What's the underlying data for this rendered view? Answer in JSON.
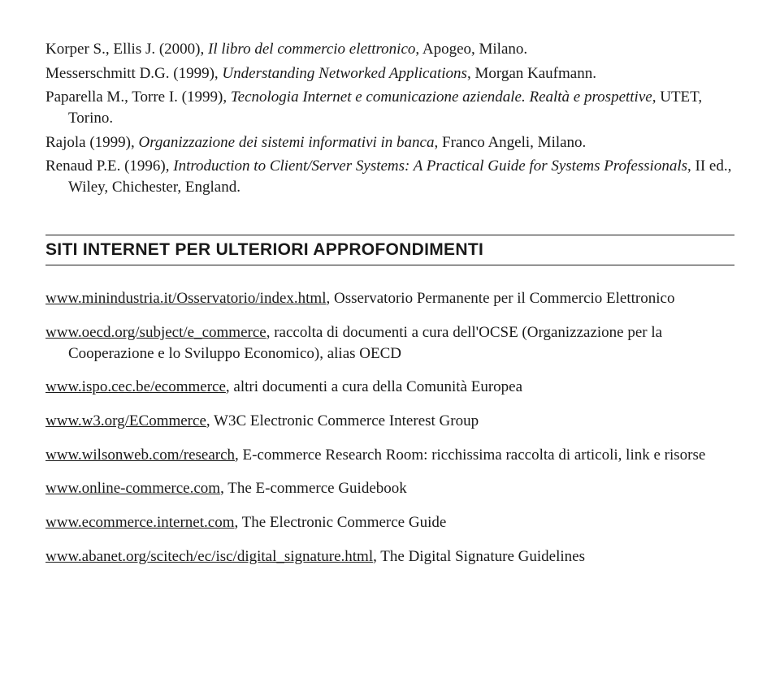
{
  "references": [
    {
      "prefix": "Korper S., Ellis J. (2000), ",
      "title": "Il libro del commercio elettronico",
      "suffix": ", Apogeo, Milano."
    },
    {
      "prefix": "Messerschmitt D.G. (1999), ",
      "title": "Understanding Networked Applications",
      "suffix": ", Morgan Kaufmann."
    },
    {
      "prefix": "Paparella M., Torre I. (1999), ",
      "title": "Tecnologia Internet e comunicazione aziendale. Realtà e prospettive",
      "suffix": ", UTET, Torino."
    },
    {
      "prefix": "Rajola (1999), ",
      "title": "Organizzazione dei sistemi informativi in banca",
      "suffix": ", Franco Angeli, Milano."
    },
    {
      "prefix": "Renaud P.E. (1996), ",
      "title": "Introduction to Client/Server Systems: A Practical Guide for Systems Professionals",
      "suffix": ", II ed., Wiley, Chichester, England."
    }
  ],
  "section_heading": "SITI INTERNET PER ULTERIORI APPROFONDIMENTI",
  "links": [
    {
      "url": "www.minindustria.it/Osservatorio/index.html",
      "desc": ", Osservatorio Permanente per il Commercio Elettronico"
    },
    {
      "url": "www.oecd.org/subject/e_commerce",
      "desc": ", raccolta di documenti a cura dell'OCSE (Organizzazione per la Cooperazione e lo Sviluppo Economico), alias OECD"
    },
    {
      "url": "www.ispo.cec.be/ecommerce",
      "desc": ", altri documenti a cura della Comunità Europea"
    },
    {
      "url": "www.w3.org/ECommerce",
      "desc": ", W3C Electronic Commerce Interest Group"
    },
    {
      "url": "www.wilsonweb.com/research",
      "desc": ", E-commerce Research Room: ricchissima raccolta di articoli, link e risorse"
    },
    {
      "url": "www.online-commerce.com",
      "desc": ", The E-commerce Guidebook"
    },
    {
      "url": "www.ecommerce.internet.com",
      "desc": ", The Electronic Commerce Guide"
    },
    {
      "url": "www.abanet.org/scitech/ec/isc/digital_signature.html",
      "desc": ", The Digital Signature Guidelines"
    }
  ]
}
